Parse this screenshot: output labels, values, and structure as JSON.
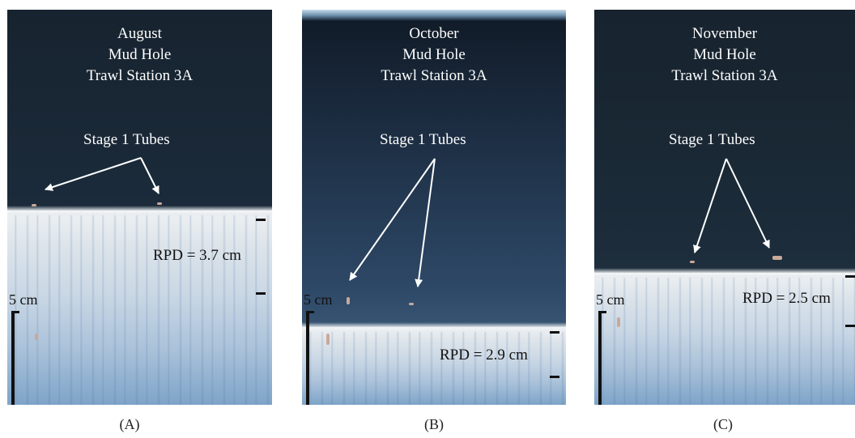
{
  "panels": [
    {
      "title_lines": [
        "August",
        "Mud Hole",
        "Trawl Station 3A"
      ],
      "tubes_label": "Stage 1 Tubes",
      "rpd_label": "RPD = 3.7 cm",
      "scale_label": "5 cm",
      "letter": "(A)"
    },
    {
      "title_lines": [
        "October",
        "Mud Hole",
        "Trawl Station 3A"
      ],
      "tubes_label": "Stage 1 Tubes",
      "rpd_label": "RPD = 2.9 cm",
      "scale_label": "5 cm",
      "letter": "(B)"
    },
    {
      "title_lines": [
        "November",
        "Mud Hole",
        "Trawl Station 3A"
      ],
      "tubes_label": "Stage 1 Tubes",
      "rpd_label": "RPD = 2.5 cm",
      "scale_label": "5 cm",
      "letter": "(C)"
    }
  ],
  "colors": {
    "water": "#1a2c40",
    "sediment": "#dde4ea",
    "annotation_text": "#ffffff",
    "rpd_text": "#111111"
  }
}
